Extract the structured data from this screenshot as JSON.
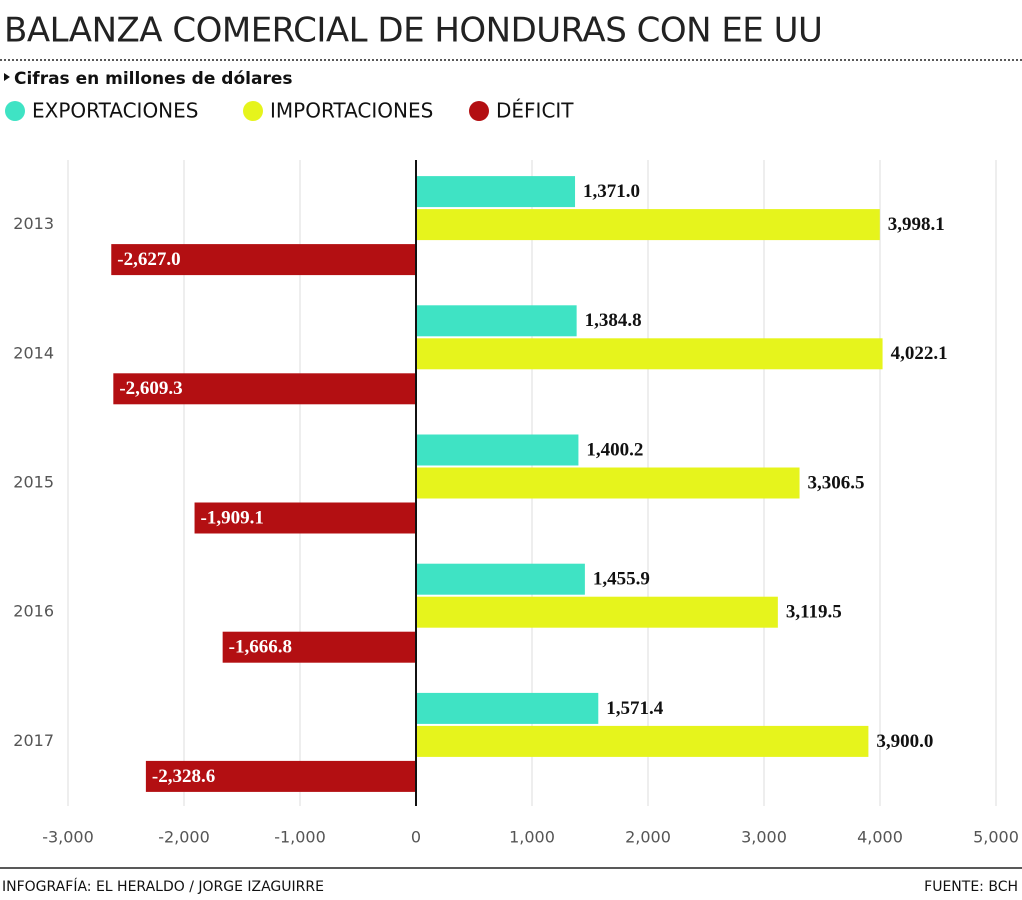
{
  "chart_data": {
    "type": "bar",
    "orientation": "horizontal",
    "title": "BALANZA COMERCIAL DE HONDURAS CON EE UU",
    "subtitle": "Cifras en millones de dólares",
    "categories": [
      "2013",
      "2014",
      "2015",
      "2016",
      "2017"
    ],
    "series": [
      {
        "name": "EXPORTACIONES",
        "color": "#3fe3c4",
        "values": [
          1371.0,
          1384.8,
          1400.2,
          1455.9,
          1571.4
        ],
        "value_labels": [
          "1,371.0",
          "1,384.8",
          "1,400.2",
          "1,455.9",
          "1,571.4"
        ]
      },
      {
        "name": "IMPORTACIONES",
        "color": "#e6f41c",
        "values": [
          3998.1,
          4022.1,
          3306.5,
          3119.5,
          3900.0
        ],
        "value_labels": [
          "3,998.1",
          "4,022.1",
          "3,306.5",
          "3,119.5",
          "3,900.0"
        ]
      },
      {
        "name": "DÉFICIT",
        "color": "#b30f12",
        "values": [
          -2627.0,
          -2609.3,
          -1909.1,
          -1666.8,
          -2328.6
        ],
        "value_labels": [
          "-2,627.0",
          "-2,609.3",
          "-1,909.1",
          "-1,666.8",
          "-2,328.6"
        ]
      }
    ],
    "xlim": [
      -3000,
      5000
    ],
    "xticks": [
      {
        "value": -3000,
        "label": "-3,000"
      },
      {
        "value": -2000,
        "label": "-2,000"
      },
      {
        "value": -1000,
        "label": "-1,000"
      },
      0,
      {
        "value": 1000,
        "label": "1,000"
      },
      {
        "value": 2000,
        "label": "2,000"
      },
      {
        "value": 3000,
        "label": "3,000"
      },
      {
        "value": 4000,
        "label": "4,000"
      },
      {
        "value": 5000,
        "label": "5,000"
      }
    ],
    "grid": true,
    "credit": "INFOGRAFÍA: EL HERALDO / JORGE IZAGUIRRE",
    "source": "FUENTE: BCH"
  }
}
